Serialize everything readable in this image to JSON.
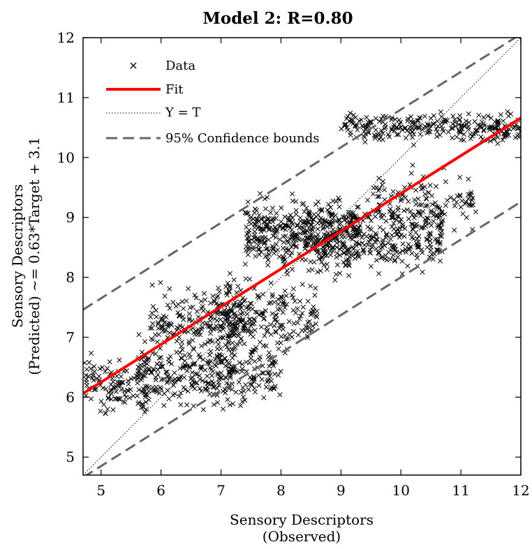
{
  "chart_data": {
    "type": "scatter",
    "title": "Model 2: R=0.80",
    "xlabel_lines": [
      "Sensory Descriptors",
      "(Observed)"
    ],
    "ylabel_lines": [
      "Sensory Descriptors",
      "(Predicted) ~= 0.63*Target + 3.1"
    ],
    "xlim": [
      4.7,
      12
    ],
    "ylim": [
      4.7,
      12
    ],
    "xticks": [
      5,
      6,
      7,
      8,
      9,
      10,
      11,
      12
    ],
    "yticks": [
      5,
      6,
      7,
      8,
      9,
      10,
      11,
      12
    ],
    "grid": false,
    "legend": {
      "placement": "top-left",
      "entries": [
        {
          "key": "data",
          "label": "Data",
          "style": "x-marker",
          "color": "#000000"
        },
        {
          "key": "fit",
          "label": "Fit",
          "style": "solid",
          "color": "#ff0000"
        },
        {
          "key": "yt",
          "label": "Y = T",
          "style": "dotted",
          "color": "#000000"
        },
        {
          "key": "conf",
          "label": "95% Confidence bounds",
          "style": "dashed",
          "color": "#666666"
        }
      ]
    },
    "fit": {
      "slope": 0.63,
      "intercept": 3.1,
      "color": "#ff0000"
    },
    "confidence_bounds": {
      "offset": 1.4,
      "color": "#666666"
    },
    "reference_line": {
      "label": "Y = T",
      "slope": 1,
      "intercept": 0
    },
    "clusters": [
      {
        "x_range": [
          4.7,
          5.8
        ],
        "y_center": 6.2,
        "y_spread": 0.35,
        "count": 120
      },
      {
        "x_range": [
          5.6,
          7.2
        ],
        "y_center": 6.4,
        "y_spread": 0.45,
        "count": 230
      },
      {
        "x_range": [
          5.8,
          7.4
        ],
        "y_center": 7.3,
        "y_spread": 0.4,
        "count": 170
      },
      {
        "x_range": [
          6.8,
          8.6
        ],
        "y_center": 7.4,
        "y_spread": 0.45,
        "count": 220
      },
      {
        "x_range": [
          6.9,
          8.0
        ],
        "y_center": 6.5,
        "y_spread": 0.45,
        "count": 110
      },
      {
        "x_range": [
          7.4,
          9.3
        ],
        "y_center": 8.7,
        "y_spread": 0.45,
        "count": 380
      },
      {
        "x_range": [
          8.4,
          10.7
        ],
        "y_center": 8.7,
        "y_spread": 0.45,
        "count": 360
      },
      {
        "x_range": [
          9.5,
          11.3
        ],
        "y_center": 9.3,
        "y_spread": 0.35,
        "count": 100
      },
      {
        "x_range": [
          9.0,
          10.5
        ],
        "y_center": 10.5,
        "y_spread": 0.18,
        "count": 130
      },
      {
        "x_range": [
          10.5,
          12.0
        ],
        "y_center": 10.5,
        "y_spread": 0.2,
        "count": 140
      }
    ]
  }
}
